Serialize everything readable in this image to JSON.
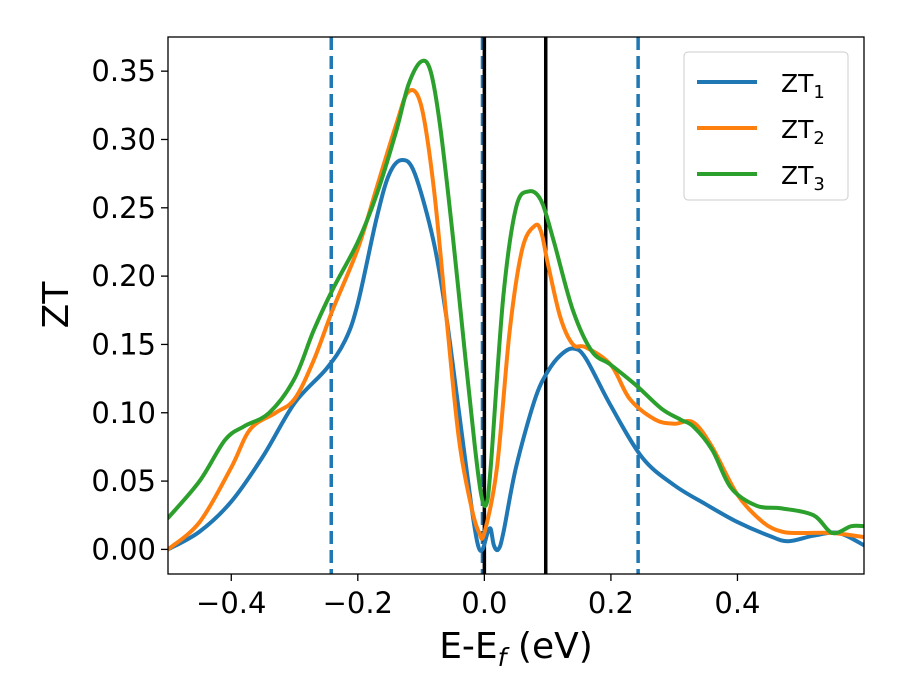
{
  "chart_data": {
    "type": "line",
    "xlabel": "E-E",
    "xlabel_sub": "f",
    "xlabel_unit": " (eV)",
    "ylabel": "ZT",
    "xlim": [
      -0.5,
      0.6
    ],
    "ylim": [
      -0.018,
      0.375
    ],
    "xticks": [
      -0.4,
      -0.2,
      0.0,
      0.2,
      0.4
    ],
    "xtick_labels": [
      "−0.4",
      "−0.2",
      "0.0",
      "0.2",
      "0.4"
    ],
    "yticks": [
      0.0,
      0.05,
      0.1,
      0.15,
      0.2,
      0.25,
      0.3,
      0.35
    ],
    "ytick_labels": [
      "0.00",
      "0.05",
      "0.10",
      "0.15",
      "0.20",
      "0.25",
      "0.30",
      "0.35"
    ],
    "grid": false,
    "legend_position": "top-right",
    "vlines": [
      {
        "x": -0.242,
        "style": "dashed",
        "color": "#1f77b4"
      },
      {
        "x": -0.003,
        "style": "dashed",
        "color": "#1f77b4"
      },
      {
        "x": 0.243,
        "style": "dashed",
        "color": "#1f77b4"
      },
      {
        "x": 0.0,
        "style": "solid",
        "color": "#000000"
      },
      {
        "x": 0.097,
        "style": "solid",
        "color": "#000000"
      }
    ],
    "series": [
      {
        "name": "ZT",
        "sub": "1",
        "color": "#1f77b4",
        "points": [
          [
            -0.5,
            0.0
          ],
          [
            -0.45,
            0.013
          ],
          [
            -0.4,
            0.035
          ],
          [
            -0.35,
            0.068
          ],
          [
            -0.3,
            0.107
          ],
          [
            -0.25,
            0.132
          ],
          [
            -0.22,
            0.153
          ],
          [
            -0.2,
            0.18
          ],
          [
            -0.17,
            0.243
          ],
          [
            -0.15,
            0.275
          ],
          [
            -0.13,
            0.285
          ],
          [
            -0.11,
            0.275
          ],
          [
            -0.08,
            0.225
          ],
          [
            -0.06,
            0.17
          ],
          [
            -0.04,
            0.1
          ],
          [
            -0.02,
            0.03
          ],
          [
            -0.01,
            0.003
          ],
          [
            -0.003,
            0.0
          ],
          [
            0.005,
            0.012
          ],
          [
            0.01,
            0.015
          ],
          [
            0.015,
            0.003
          ],
          [
            0.022,
            0.0
          ],
          [
            0.03,
            0.012
          ],
          [
            0.05,
            0.06
          ],
          [
            0.08,
            0.11
          ],
          [
            0.1,
            0.13
          ],
          [
            0.12,
            0.142
          ],
          [
            0.14,
            0.147
          ],
          [
            0.16,
            0.14
          ],
          [
            0.2,
            0.105
          ],
          [
            0.25,
            0.067
          ],
          [
            0.3,
            0.047
          ],
          [
            0.35,
            0.033
          ],
          [
            0.4,
            0.02
          ],
          [
            0.45,
            0.01
          ],
          [
            0.48,
            0.006
          ],
          [
            0.52,
            0.01
          ],
          [
            0.56,
            0.012
          ],
          [
            0.6,
            0.003
          ]
        ]
      },
      {
        "name": "ZT",
        "sub": "2",
        "color": "#ff7f0e",
        "points": [
          [
            -0.5,
            0.0
          ],
          [
            -0.45,
            0.02
          ],
          [
            -0.4,
            0.06
          ],
          [
            -0.37,
            0.088
          ],
          [
            -0.33,
            0.1
          ],
          [
            -0.3,
            0.11
          ],
          [
            -0.27,
            0.138
          ],
          [
            -0.24,
            0.175
          ],
          [
            -0.2,
            0.22
          ],
          [
            -0.17,
            0.265
          ],
          [
            -0.14,
            0.31
          ],
          [
            -0.12,
            0.335
          ],
          [
            -0.1,
            0.325
          ],
          [
            -0.08,
            0.265
          ],
          [
            -0.06,
            0.17
          ],
          [
            -0.04,
            0.08
          ],
          [
            -0.02,
            0.03
          ],
          [
            -0.008,
            0.012
          ],
          [
            0.0,
            0.012
          ],
          [
            0.02,
            0.06
          ],
          [
            0.04,
            0.16
          ],
          [
            0.06,
            0.22
          ],
          [
            0.08,
            0.237
          ],
          [
            0.09,
            0.232
          ],
          [
            0.1,
            0.21
          ],
          [
            0.12,
            0.17
          ],
          [
            0.14,
            0.15
          ],
          [
            0.16,
            0.148
          ],
          [
            0.2,
            0.135
          ],
          [
            0.23,
            0.11
          ],
          [
            0.27,
            0.095
          ],
          [
            0.3,
            0.092
          ],
          [
            0.33,
            0.093
          ],
          [
            0.36,
            0.075
          ],
          [
            0.4,
            0.04
          ],
          [
            0.44,
            0.02
          ],
          [
            0.47,
            0.013
          ],
          [
            0.5,
            0.012
          ],
          [
            0.55,
            0.012
          ],
          [
            0.6,
            0.009
          ]
        ]
      },
      {
        "name": "ZT",
        "sub": "3",
        "color": "#2ca02c",
        "points": [
          [
            -0.5,
            0.023
          ],
          [
            -0.45,
            0.05
          ],
          [
            -0.41,
            0.08
          ],
          [
            -0.38,
            0.09
          ],
          [
            -0.34,
            0.1
          ],
          [
            -0.3,
            0.125
          ],
          [
            -0.27,
            0.16
          ],
          [
            -0.24,
            0.19
          ],
          [
            -0.2,
            0.225
          ],
          [
            -0.17,
            0.26
          ],
          [
            -0.14,
            0.305
          ],
          [
            -0.12,
            0.34
          ],
          [
            -0.1,
            0.357
          ],
          [
            -0.085,
            0.35
          ],
          [
            -0.07,
            0.31
          ],
          [
            -0.05,
            0.23
          ],
          [
            -0.03,
            0.14
          ],
          [
            -0.015,
            0.075
          ],
          [
            -0.005,
            0.04
          ],
          [
            0.003,
            0.033
          ],
          [
            0.01,
            0.06
          ],
          [
            0.03,
            0.185
          ],
          [
            0.05,
            0.25
          ],
          [
            0.07,
            0.262
          ],
          [
            0.09,
            0.255
          ],
          [
            0.11,
            0.225
          ],
          [
            0.14,
            0.175
          ],
          [
            0.17,
            0.145
          ],
          [
            0.2,
            0.135
          ],
          [
            0.24,
            0.12
          ],
          [
            0.28,
            0.103
          ],
          [
            0.31,
            0.095
          ],
          [
            0.33,
            0.09
          ],
          [
            0.36,
            0.073
          ],
          [
            0.39,
            0.045
          ],
          [
            0.43,
            0.032
          ],
          [
            0.47,
            0.03
          ],
          [
            0.52,
            0.025
          ],
          [
            0.55,
            0.012
          ],
          [
            0.58,
            0.017
          ],
          [
            0.6,
            0.017
          ]
        ]
      }
    ]
  }
}
